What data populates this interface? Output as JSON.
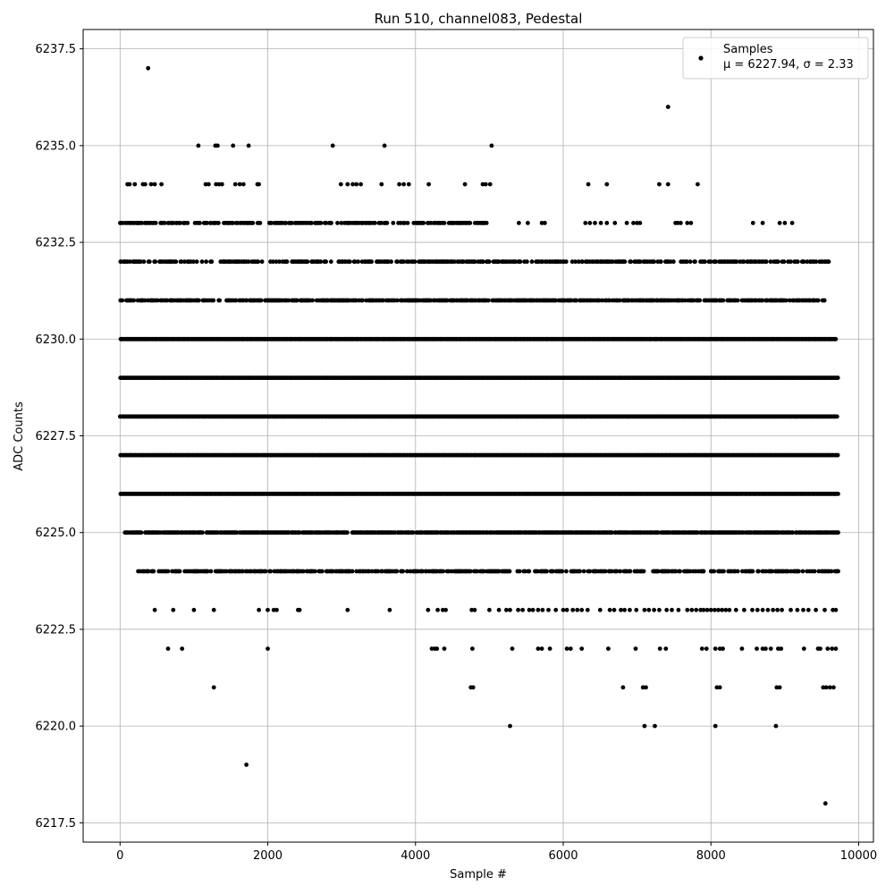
{
  "chart_data": {
    "type": "scatter",
    "title": "Run 510, channel083, Pedestal",
    "xlabel": "Sample #",
    "ylabel": "ADC Counts",
    "xlim": [
      -500,
      10200
    ],
    "ylim": [
      6217.0,
      6238.0
    ],
    "x_ticks": [
      0,
      2000,
      4000,
      6000,
      8000,
      10000
    ],
    "x_tick_labels": [
      "0",
      "2000",
      "4000",
      "6000",
      "8000",
      "10000"
    ],
    "y_ticks": [
      6217.5,
      6220.0,
      6222.5,
      6225.0,
      6227.5,
      6230.0,
      6232.5,
      6235.0,
      6237.5
    ],
    "y_tick_labels": [
      "6217.5",
      "6220.0",
      "6222.5",
      "6225.0",
      "6227.5",
      "6230.0",
      "6232.5",
      "6235.0",
      "6237.5"
    ],
    "grid": true,
    "legend": {
      "placement": "top-right",
      "entries": [
        "Samples",
        "μ = 6227.94, σ = 2.33"
      ]
    },
    "stats": {
      "mean": 6227.94,
      "sigma": 2.33
    },
    "n_samples": 9728,
    "marker_color": "#000000",
    "levels": [
      {
        "y": 6237,
        "points": [
          380
        ]
      },
      {
        "y": 6236,
        "points": [
          7420
        ]
      },
      {
        "y": 6235,
        "points": [
          1060,
          1290,
          1320,
          1530,
          1740,
          2880,
          3580,
          5030
        ]
      },
      {
        "y": 6234,
        "points": [
          100,
          130,
          200,
          310,
          340,
          420,
          470,
          560,
          1160,
          1200,
          1300,
          1340,
          1380,
          1560,
          1620,
          1670,
          1860,
          1880,
          2990,
          3080,
          3150,
          3200,
          3260,
          3540,
          3780,
          3840,
          3910,
          4180,
          4670,
          4910,
          4950,
          5010,
          6340,
          6590,
          7300,
          7420,
          7820
        ]
      },
      {
        "y": 6233,
        "range": [
          0,
          5060
        ],
        "density": 0.55,
        "extra": [
          5400,
          5520,
          5710,
          5750,
          6300,
          6360,
          6430,
          6510,
          6590,
          6700,
          6860,
          6950,
          7000,
          7040,
          7520,
          7550,
          7590,
          7680,
          7730,
          8570,
          8700,
          8930,
          9000,
          9100
        ]
      },
      {
        "y": 6232,
        "range": [
          0,
          9600
        ],
        "density": 0.55
      },
      {
        "y": 6231,
        "range": [
          0,
          9550
        ],
        "density": 0.7
      },
      {
        "y": 6230,
        "range": [
          0,
          9700
        ],
        "density": 1.0
      },
      {
        "y": 6229,
        "range": [
          0,
          9720
        ],
        "density": 1.0
      },
      {
        "y": 6228,
        "range": [
          0,
          9710
        ],
        "density": 1.0
      },
      {
        "y": 6227,
        "range": [
          0,
          9720
        ],
        "density": 1.0
      },
      {
        "y": 6226,
        "range": [
          0,
          9720
        ],
        "density": 1.0
      },
      {
        "y": 6225,
        "range": [
          60,
          9720
        ],
        "density": 0.85
      },
      {
        "y": 6224,
        "range": [
          200,
          9720
        ],
        "density": 0.55
      },
      {
        "y": 6223,
        "points": [
          470,
          720,
          1000,
          1270,
          1880,
          2000,
          2080,
          2120,
          2410,
          2430,
          3080,
          3650,
          4170,
          4300,
          4370,
          4410,
          4760,
          4800,
          5000,
          5130,
          5230,
          5280,
          5390,
          5450,
          5540,
          5590,
          5660,
          5720,
          5800,
          5900,
          6000,
          6050,
          6130,
          6190,
          6250,
          6330,
          6500,
          6630,
          6690,
          6780,
          6830,
          6900,
          6990,
          7100,
          7160,
          7230,
          7300,
          7400,
          7470,
          7560,
          7680,
          7740,
          7800,
          7860,
          7900,
          7950,
          8000,
          8050,
          8100,
          8150,
          8200,
          8250,
          8340,
          8450,
          8560,
          8630,
          8700,
          8770,
          8840,
          8900,
          8960,
          9080,
          9170,
          9250,
          9320,
          9420,
          9540,
          9650,
          9690
        ]
      },
      {
        "y": 6222,
        "points": [
          650,
          840,
          2000,
          4220,
          4260,
          4290,
          4390,
          4770,
          5310,
          5660,
          5710,
          5820,
          6050,
          6100,
          6250,
          6610,
          6980,
          7310,
          7390,
          7880,
          7940,
          8060,
          8120,
          8160,
          8420,
          8620,
          8700,
          8740,
          8810,
          8910,
          8950,
          9260,
          9450,
          9480,
          9580,
          9640,
          9690
        ]
      },
      {
        "y": 6221,
        "points": [
          1270,
          4750,
          4780,
          6810,
          7080,
          7120,
          8080,
          8120,
          8890,
          8930,
          9520,
          9560,
          9610,
          9660
        ]
      },
      {
        "y": 6220,
        "points": [
          5280,
          7100,
          7240,
          8060,
          8880
        ]
      },
      {
        "y": 6219,
        "points": [
          1710
        ]
      },
      {
        "y": 6218,
        "points": [
          9550
        ]
      }
    ]
  }
}
